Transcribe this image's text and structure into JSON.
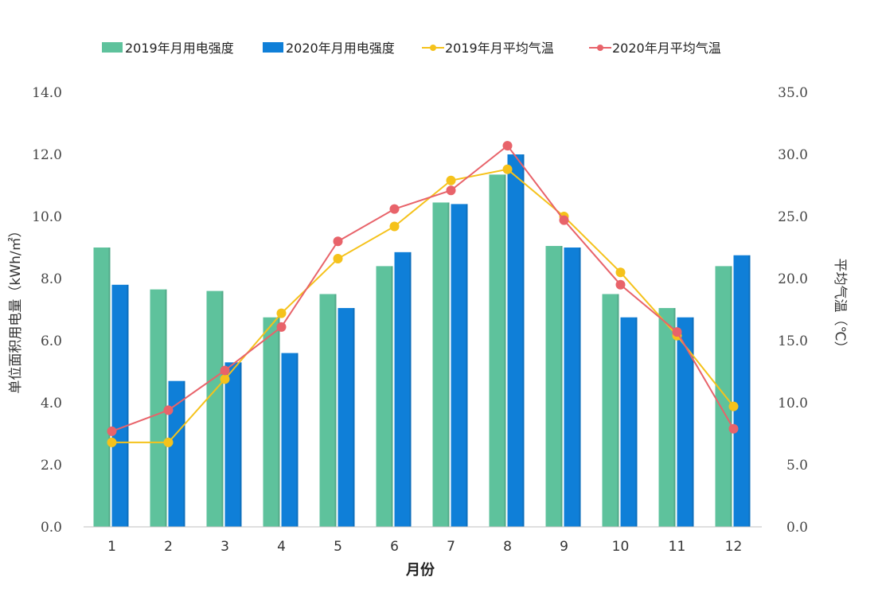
{
  "chart_data": {
    "type": "bar",
    "categories": [
      "1",
      "2",
      "3",
      "4",
      "5",
      "6",
      "7",
      "8",
      "9",
      "10",
      "11",
      "12"
    ],
    "xlabel": "月份",
    "ylabel_left": "单位面积用电量（kWh/㎡）",
    "ylabel_right": "平均气温（℃）",
    "ylim_left": [
      0,
      14
    ],
    "ylim_right": [
      0,
      35
    ],
    "yticks_left": [
      "0.0",
      "2.0",
      "4.0",
      "6.0",
      "8.0",
      "10.0",
      "12.0",
      "14.0"
    ],
    "yticks_right": [
      "0.0",
      "5.0",
      "10.0",
      "15.0",
      "20.0",
      "25.0",
      "30.0",
      "35.0"
    ],
    "grid": false,
    "legend_position": "top",
    "series": [
      {
        "name": "2019年月用电强度",
        "kind": "bar",
        "axis": "left",
        "color": "#5ec29c",
        "values": [
          9.0,
          7.65,
          7.6,
          6.75,
          7.5,
          8.4,
          10.45,
          11.35,
          9.05,
          7.5,
          7.05,
          8.4
        ]
      },
      {
        "name": "2020年月用电强度",
        "kind": "bar",
        "axis": "left",
        "color": "#0f7fd8",
        "values": [
          7.8,
          4.7,
          5.3,
          5.6,
          7.05,
          8.85,
          10.4,
          12.0,
          9.0,
          6.75,
          6.75,
          8.75
        ]
      },
      {
        "name": "2019年月平均气温",
        "kind": "line",
        "axis": "right",
        "color": "#f5c21b",
        "values": [
          6.8,
          6.8,
          11.9,
          17.2,
          21.6,
          24.2,
          27.9,
          28.8,
          25.0,
          20.5,
          15.4,
          9.7
        ]
      },
      {
        "name": "2020年月平均气温",
        "kind": "line",
        "axis": "right",
        "color": "#e8636a",
        "values": [
          7.7,
          9.4,
          12.6,
          16.1,
          23.0,
          25.6,
          27.1,
          30.7,
          24.7,
          19.5,
          15.7,
          7.9
        ]
      }
    ]
  }
}
